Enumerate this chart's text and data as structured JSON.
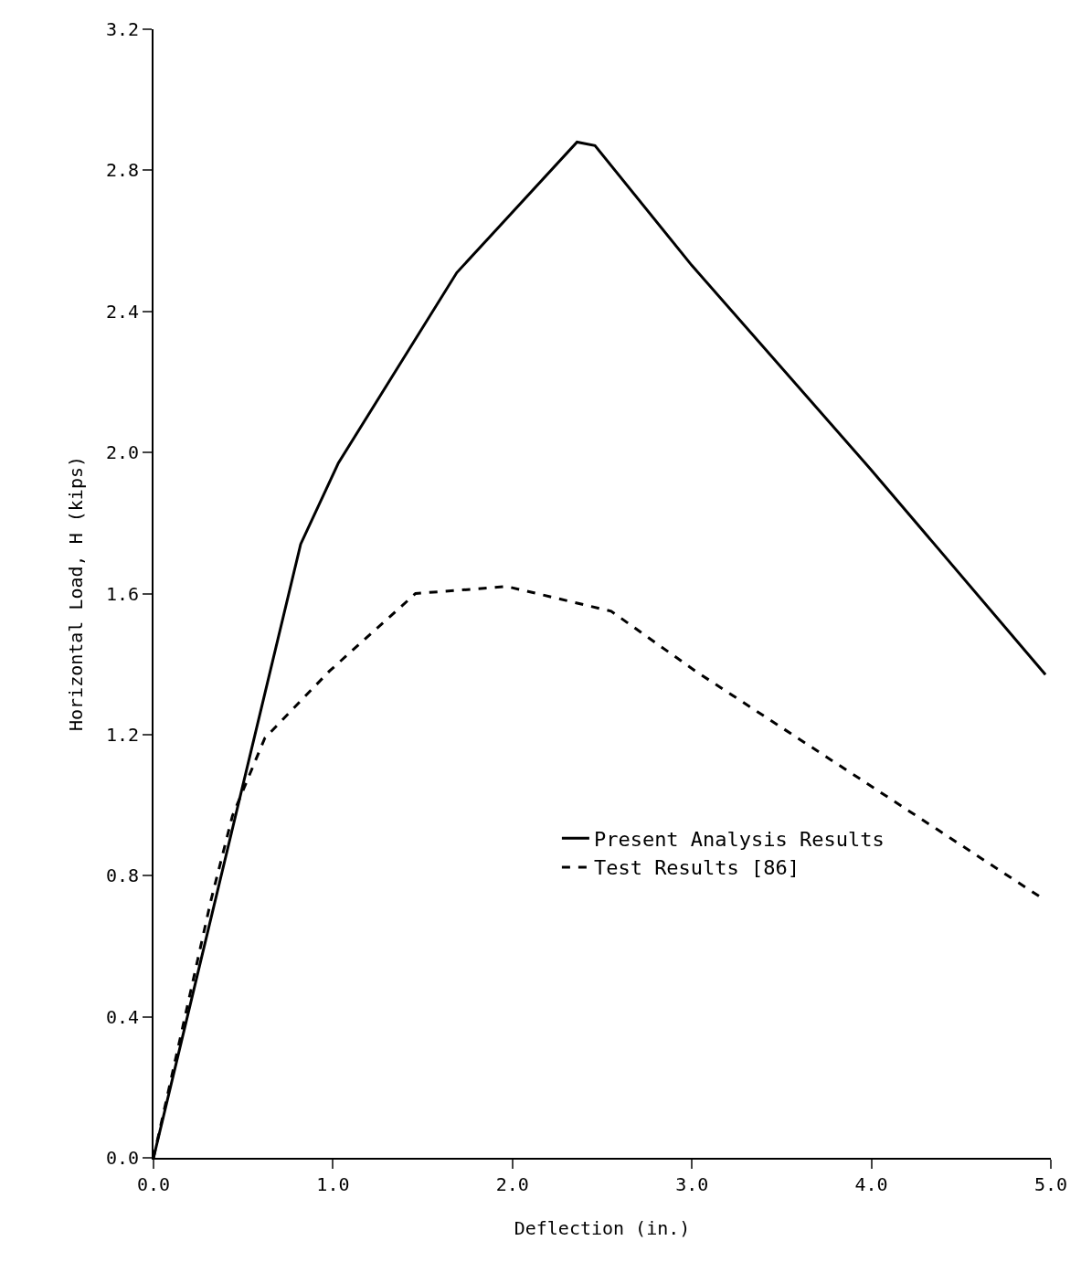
{
  "chart_data": {
    "type": "line",
    "xlabel": "Deflection (in.)",
    "ylabel": "Horizontal Load, H (kips)",
    "xlim": [
      0,
      5
    ],
    "xticks": [
      {
        "value": 0,
        "label": "0.0"
      },
      {
        "value": 1,
        "label": "1.0"
      },
      {
        "value": 2,
        "label": "2.0"
      },
      {
        "value": 3,
        "label": "3.0"
      },
      {
        "value": 4,
        "label": "4.0"
      },
      {
        "value": 5,
        "label": "5.0"
      }
    ],
    "ylim": [
      0,
      3.2
    ],
    "yticks": [
      {
        "value": 0,
        "label": "0.0"
      },
      {
        "value": 0.4,
        "label": "0.4"
      },
      {
        "value": 0.8,
        "label": "0.8"
      },
      {
        "value": 1.2,
        "label": "1.2"
      },
      {
        "value": 1.6,
        "label": "1.6"
      },
      {
        "value": 2.0,
        "label": "2.0"
      },
      {
        "value": 2.4,
        "label": "2.4"
      },
      {
        "value": 2.8,
        "label": "2.8"
      },
      {
        "value": 3.2,
        "label": "3.2"
      }
    ],
    "grid": false,
    "legend": "bottom right",
    "marker": "none",
    "series": [
      {
        "name": "Present Analysis Results",
        "color": "#000000",
        "line_style": "solid",
        "x": [
          0,
          0.82,
          1.03,
          1.69,
          2.36,
          2.46,
          3.0,
          4.0,
          4.97
        ],
        "values": [
          0,
          1.74,
          1.97,
          2.51,
          2.88,
          2.87,
          2.53,
          1.95,
          1.37
        ]
      },
      {
        "name": "Test Results [86]",
        "color": "#000000",
        "line_style": "dashed",
        "x": [
          0,
          0.32,
          0.44,
          0.62,
          0.98,
          1.46,
          1.97,
          2.55,
          3.02,
          4.97
        ],
        "values": [
          0,
          0.73,
          0.97,
          1.19,
          1.38,
          1.6,
          1.62,
          1.55,
          1.38,
          0.73
        ]
      }
    ]
  }
}
